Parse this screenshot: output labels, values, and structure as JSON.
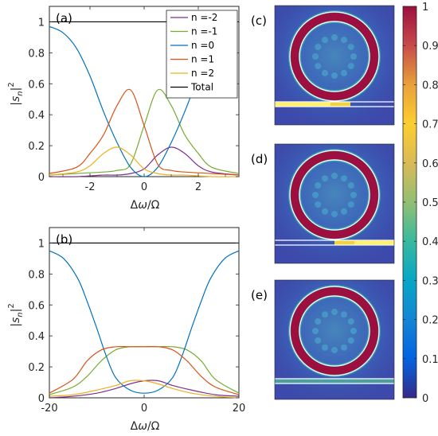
{
  "chart_data": [
    {
      "panel": "(a)",
      "type": "line",
      "xlabel": "Δω/Ω",
      "ylabel": "|s_n|²",
      "xlim": [
        -3.5,
        3.5
      ],
      "ylim": [
        0,
        1.1
      ],
      "xticks": [
        "-2",
        "0",
        "2"
      ],
      "yticks": [
        "0",
        "0.2",
        "0.4",
        "0.6",
        "0.8",
        "1"
      ],
      "legend": "top-right",
      "series": [
        {
          "name": "n =-2",
          "color": "#7e2f8e",
          "x": [
            -3.5,
            -2.5,
            -1.5,
            -1.0,
            -0.5,
            0,
            0.5,
            1.0,
            1.5,
            2.0,
            2.5,
            3.5
          ],
          "y": [
            0.0,
            0.0,
            0.01,
            0.01,
            0.02,
            0.05,
            0.14,
            0.19,
            0.15,
            0.07,
            0.03,
            0.01
          ]
        },
        {
          "name": "n =-1",
          "color": "#77ac30",
          "x": [
            -3.5,
            -2.5,
            -1.5,
            -1.0,
            -0.5,
            0,
            0.5,
            1.0,
            1.5,
            2.0,
            2.5,
            3.5
          ],
          "y": [
            0.01,
            0.02,
            0.03,
            0.04,
            0.08,
            0.33,
            0.56,
            0.46,
            0.27,
            0.15,
            0.06,
            0.02
          ]
        },
        {
          "name": "n =0",
          "color": "#0072bd",
          "x": [
            -3.5,
            -3.0,
            -2.5,
            -2.0,
            -1.5,
            -1.0,
            -0.5,
            0,
            0.5,
            1.0,
            1.5,
            2.0
          ],
          "y": [
            0.97,
            0.93,
            0.83,
            0.65,
            0.42,
            0.22,
            0.06,
            0.0,
            0.06,
            0.22,
            0.42,
            0.65
          ]
        },
        {
          "name": "n =1",
          "color": "#d95319",
          "x": [
            -3.5,
            -2.5,
            -2.0,
            -1.5,
            -1.0,
            -0.5,
            0,
            0.5,
            1.0,
            1.5,
            2.5,
            3.5
          ],
          "y": [
            0.02,
            0.06,
            0.15,
            0.27,
            0.46,
            0.56,
            0.33,
            0.08,
            0.04,
            0.03,
            0.02,
            0.01
          ]
        },
        {
          "name": "n =2",
          "color": "#edb120",
          "x": [
            -3.5,
            -2.5,
            -2.0,
            -1.5,
            -1.0,
            -0.5,
            0,
            0.5,
            1.0,
            1.5,
            2.5,
            3.5
          ],
          "y": [
            0.01,
            0.03,
            0.07,
            0.15,
            0.19,
            0.14,
            0.05,
            0.02,
            0.01,
            0.01,
            0.0,
            0.0
          ]
        },
        {
          "name": "Total",
          "color": "#000000",
          "x": [
            -3.5,
            3.5
          ],
          "y": [
            1.0,
            1.0
          ]
        }
      ]
    },
    {
      "panel": "(b)",
      "type": "line",
      "xlabel": "Δω/Ω",
      "ylabel": "|s_n|²",
      "xlim": [
        -20,
        20
      ],
      "ylim": [
        0,
        1.1
      ],
      "xticks": [
        "-20",
        "0",
        "20"
      ],
      "yticks": [
        "0",
        "0.2",
        "0.4",
        "0.6",
        "0.8",
        "1"
      ],
      "series": [
        {
          "name": "n =-2",
          "color": "#7e2f8e",
          "x": [
            -20,
            -15,
            -10,
            -6,
            -3,
            0,
            3,
            6,
            10,
            15,
            20
          ],
          "y": [
            0.0,
            0.01,
            0.03,
            0.06,
            0.09,
            0.11,
            0.11,
            0.08,
            0.05,
            0.02,
            0.01
          ]
        },
        {
          "name": "n =-1",
          "color": "#77ac30",
          "x": [
            -20,
            -15,
            -12,
            -9,
            -6,
            -3,
            0,
            3,
            6,
            9,
            12,
            15,
            20
          ],
          "y": [
            0.02,
            0.07,
            0.14,
            0.24,
            0.31,
            0.33,
            0.33,
            0.33,
            0.33,
            0.31,
            0.24,
            0.12,
            0.03
          ]
        },
        {
          "name": "n =0",
          "color": "#0072bd",
          "x": [
            -20,
            -17,
            -14,
            -12,
            -10,
            -8,
            -6,
            -3,
            0,
            3,
            6,
            8,
            10,
            12,
            14,
            17,
            20
          ],
          "y": [
            0.95,
            0.9,
            0.77,
            0.62,
            0.45,
            0.27,
            0.13,
            0.05,
            0.03,
            0.05,
            0.13,
            0.27,
            0.45,
            0.62,
            0.77,
            0.9,
            0.95
          ]
        },
        {
          "name": "n =1",
          "color": "#d95319",
          "x": [
            -20,
            -15,
            -12,
            -9,
            -6,
            -3,
            0,
            3,
            6,
            9,
            12,
            15,
            20
          ],
          "y": [
            0.03,
            0.12,
            0.24,
            0.31,
            0.33,
            0.33,
            0.33,
            0.33,
            0.31,
            0.24,
            0.14,
            0.07,
            0.02
          ]
        },
        {
          "name": "n =2",
          "color": "#edb120",
          "x": [
            -20,
            -15,
            -10,
            -6,
            -3,
            0,
            3,
            6,
            10,
            15,
            20
          ],
          "y": [
            0.01,
            0.02,
            0.05,
            0.08,
            0.11,
            0.11,
            0.09,
            0.06,
            0.03,
            0.01,
            0.0
          ]
        },
        {
          "name": "Total",
          "color": "#000000",
          "x": [
            -20,
            20
          ],
          "y": [
            1.0,
            1.0
          ]
        }
      ]
    },
    {
      "type": "heatmap",
      "panels": [
        "(c)",
        "(d)",
        "(e)"
      ],
      "colorbar": {
        "min": 0,
        "max": 1,
        "ticks": [
          "0",
          "0.1",
          "0.2",
          "0.3",
          "0.4",
          "0.5",
          "0.6",
          "0.7",
          "0.8",
          "0.9",
          "1"
        ]
      }
    }
  ],
  "labels": {
    "a": "(a)",
    "b": "(b)",
    "c": "(c)",
    "d": "(d)",
    "e": "(e)"
  }
}
